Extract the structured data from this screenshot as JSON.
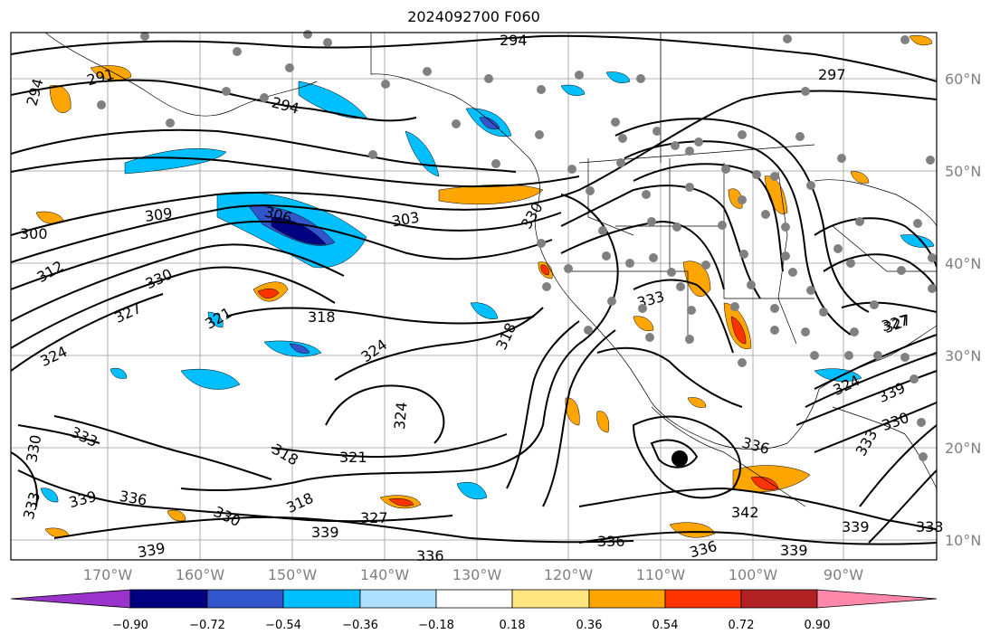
{
  "title": "2024092700 F060",
  "lat_labels": [
    "60°N",
    "50°N",
    "40°N",
    "30°N",
    "20°N",
    "10°N"
  ],
  "lon_labels": [
    "170°W",
    "160°W",
    "150°W",
    "140°W",
    "130°W",
    "120°W",
    "110°W",
    "100°W",
    "90°W"
  ],
  "contour_labels": [
    "294",
    "297",
    "291",
    "294",
    "294",
    "300",
    "309",
    "306",
    "303",
    "312",
    "330",
    "327",
    "324",
    "321",
    "318",
    "324",
    "318",
    "333",
    "327",
    "321",
    "318",
    "318",
    "324",
    "330",
    "333",
    "333",
    "339",
    "336",
    "330",
    "339",
    "327",
    "339",
    "336",
    "336",
    "342",
    "336",
    "339",
    "339",
    "333",
    "330",
    "324",
    "327",
    "333",
    "330",
    "336",
    "339"
  ],
  "colorbar": {
    "tick_labels": [
      "−0.90",
      "−0.72",
      "−0.54",
      "−0.36",
      "−0.18",
      "0.18",
      "0.36",
      "0.54",
      "0.72",
      "0.90"
    ],
    "colors": [
      "#9933cc",
      "#000080",
      "#3355cc",
      "#00bfff",
      "#b0e0ff",
      "#ffffff",
      "#ffe680",
      "#ffa500",
      "#ff3300",
      "#b22222",
      "#ff88aa"
    ]
  },
  "colors": {
    "contour": "#000000",
    "gridline": "#808080",
    "station": "#808080",
    "center_marker": "#000000"
  }
}
